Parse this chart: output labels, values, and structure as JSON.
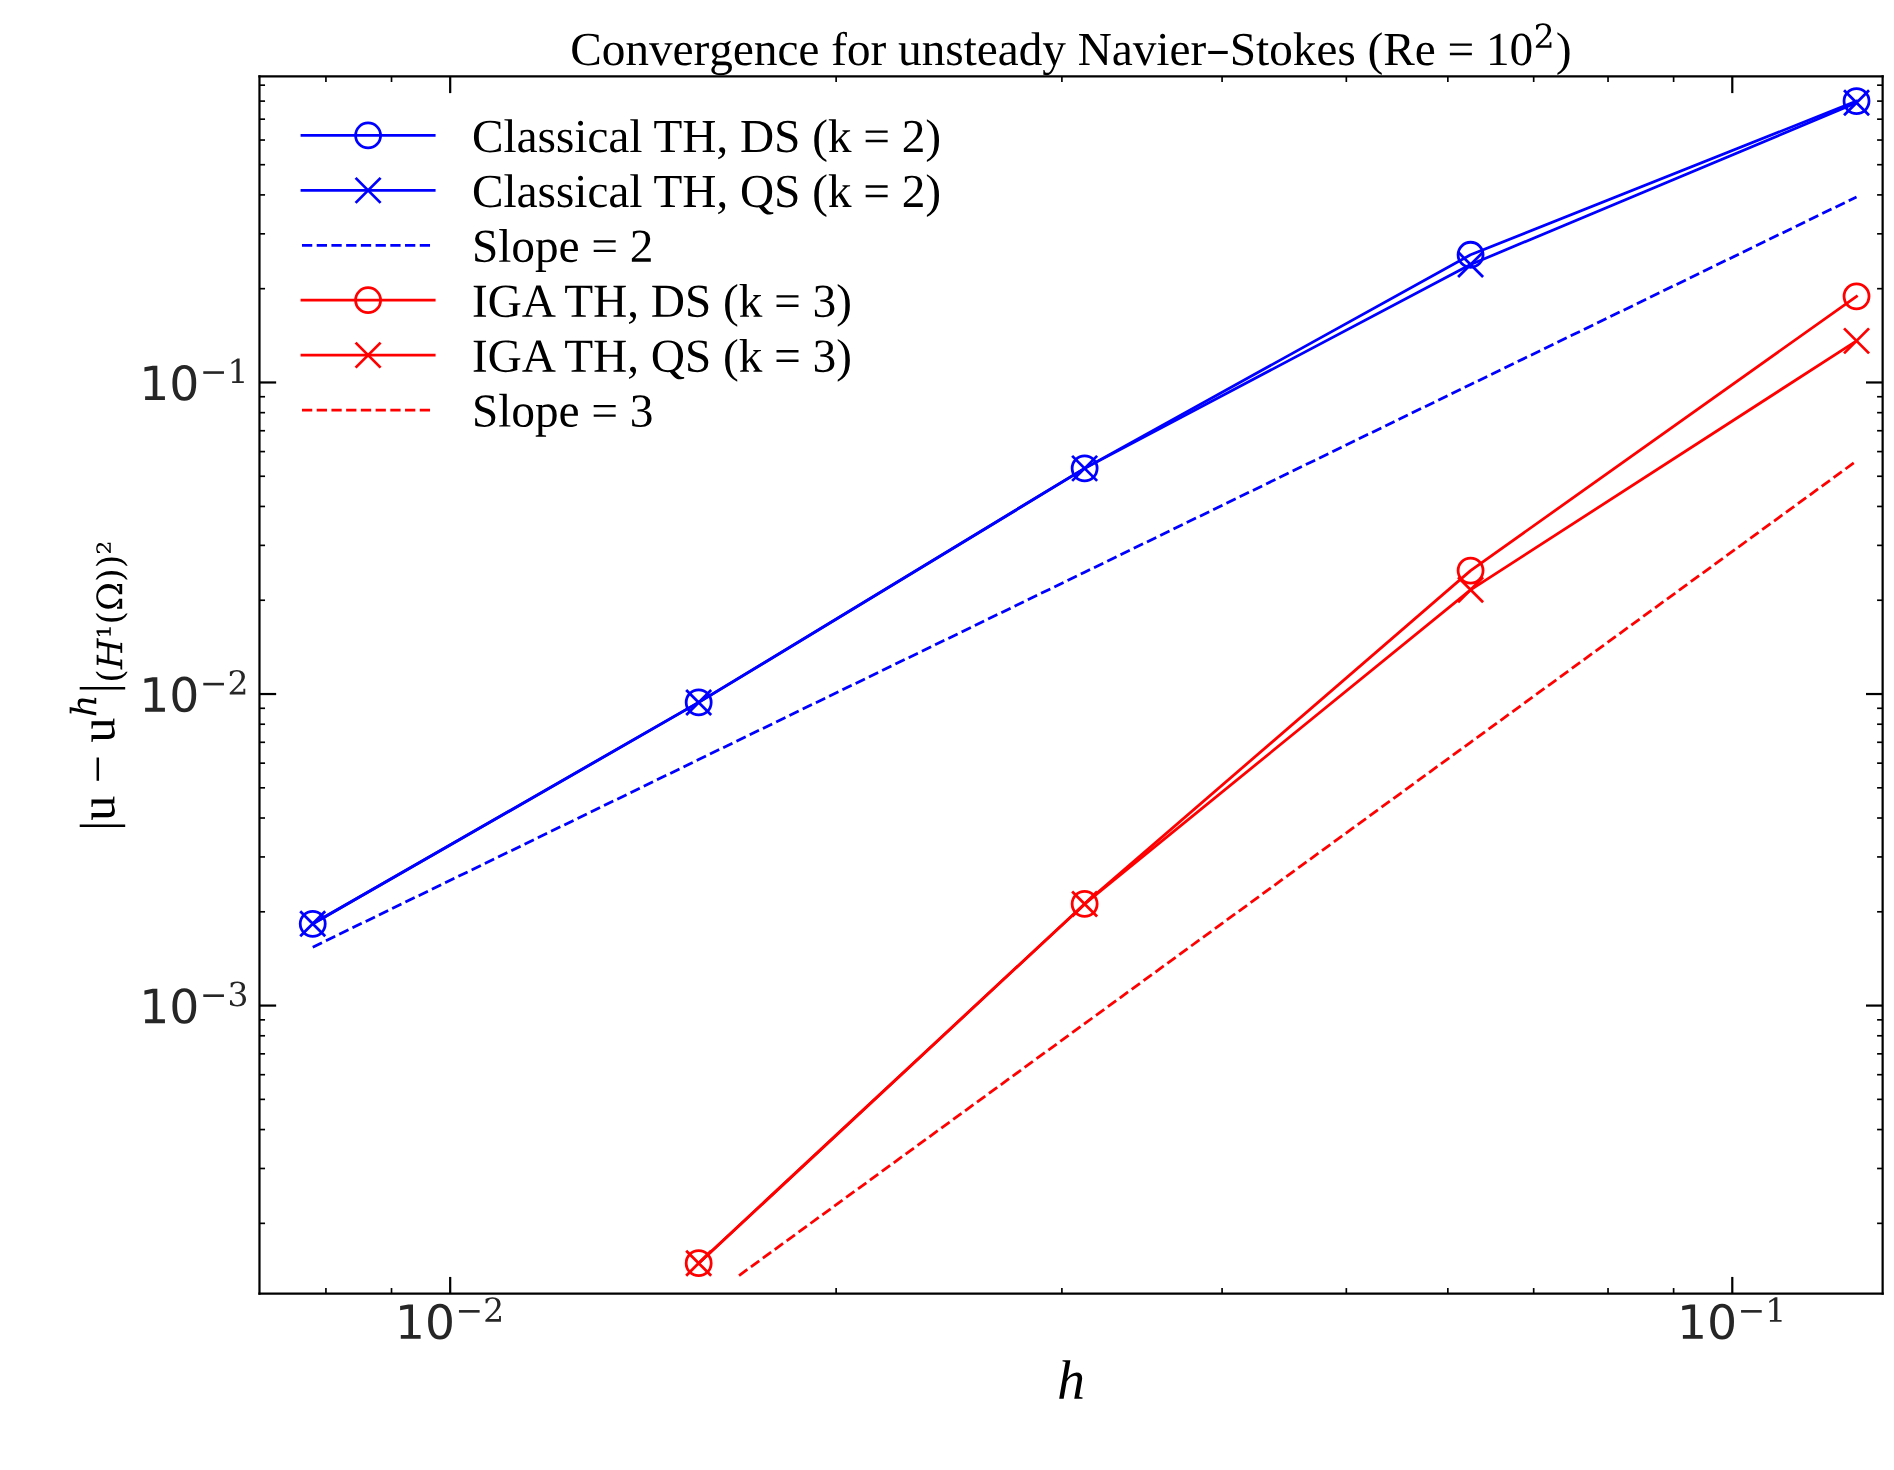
{
  "chart_data": {
    "type": "line",
    "title": "Convergence for unsteady Navier–Stokes (Re = 10$^{2}$)",
    "xlabel": "h",
    "ylabel": "|u − u$^{h}$|$_{(H¹(Ω))²}$",
    "log": "xy",
    "grid": false,
    "legend": "top left",
    "xlim": [
      0.0071,
      0.131
    ],
    "ylim": [
      0.000119,
      0.96
    ],
    "xticks": [
      {
        "value": 0.01,
        "label": "10$^{−2}$"
      },
      {
        "value": 0.1,
        "label": "10$^{−1}$"
      }
    ],
    "yticks": [
      {
        "value": 0.001,
        "label": "10$^{−3}$"
      },
      {
        "value": 0.01,
        "label": "10$^{−2}$"
      },
      {
        "value": 0.1,
        "label": "10$^{−1}$"
      }
    ],
    "x": [
      0.0078125,
      0.015625,
      0.03125,
      0.0625,
      0.125
    ],
    "series": [
      {
        "name": "Classical TH, DS (k = 2)",
        "color": "#0000ff",
        "marker": "circle",
        "line_style": "solid",
        "values": [
          0.00183,
          0.0094,
          0.053,
          0.257,
          0.8
        ]
      },
      {
        "name": "Classical TH, QS (k = 2)",
        "color": "#0000ff",
        "marker": "cross",
        "line_style": "solid",
        "values": [
          0.00183,
          0.0094,
          0.053,
          0.239,
          0.79
        ]
      },
      {
        "name": "Slope = 2",
        "color": "#0000ff",
        "marker": "none",
        "line_style": "dashed",
        "values": [
          0.00154,
          0.00616,
          0.0246,
          0.0985,
          0.394
        ]
      },
      {
        "name": "IGA TH, DS (k = 3)",
        "color": "#ff0000",
        "marker": "circle",
        "line_style": "solid",
        "x": [
          0.015625,
          0.03125,
          0.0625,
          0.125
        ],
        "values": [
          0.000149,
          0.00212,
          0.0249,
          0.189
        ]
      },
      {
        "name": "IGA TH, QS (k = 3)",
        "color": "#ff0000",
        "marker": "cross",
        "line_style": "solid",
        "x": [
          0.015625,
          0.03125,
          0.0625,
          0.125
        ],
        "values": [
          0.000149,
          0.00212,
          0.0216,
          0.136
        ]
      },
      {
        "name": "Slope = 3",
        "color": "#ff0000",
        "marker": "none",
        "line_style": "dashed",
        "x": [
          0.0168,
          0.03125,
          0.0625,
          0.125
        ],
        "values": [
          0.000136,
          0.000875,
          0.007,
          0.056
        ]
      }
    ]
  }
}
